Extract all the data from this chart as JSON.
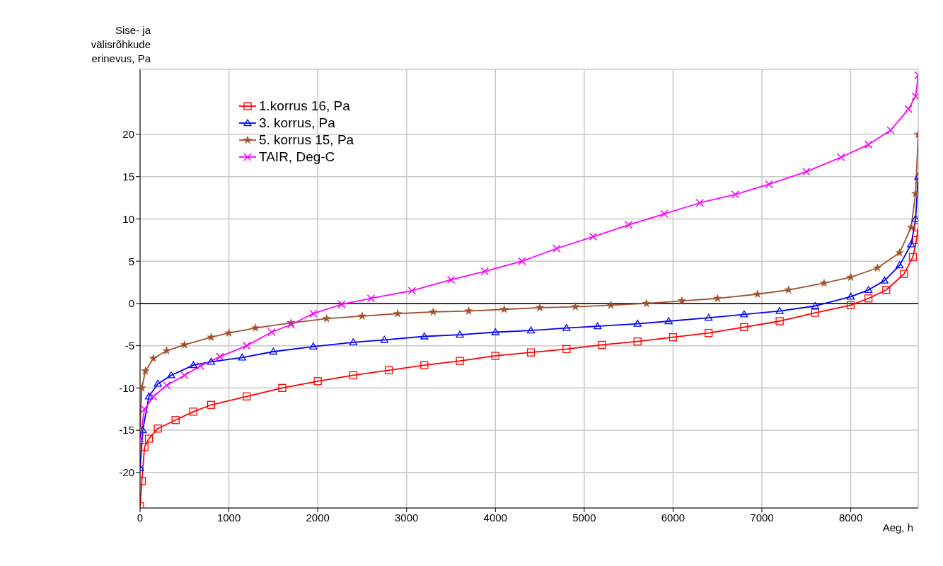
{
  "chart_data": {
    "type": "line",
    "xlabel": "Aeg, h",
    "ylabel": "Sise- ja välisrõhkude erinevus, Pa",
    "xlim": [
      0,
      8760
    ],
    "xticks": [
      0,
      1000,
      2000,
      3000,
      4000,
      5000,
      6000,
      7000,
      8000
    ],
    "ylim": [
      -24.2,
      27.7
    ],
    "yticks": [
      -20,
      -15,
      -10,
      -5,
      0,
      5,
      10,
      15,
      20
    ],
    "grid": true,
    "legend": "top left",
    "line_style": "solid",
    "ref_lines": [
      {
        "axis": "y",
        "value": 0,
        "color": "#000000"
      }
    ],
    "series": [
      {
        "name": "1.korrus 16, Pa",
        "color": "#ff0000",
        "marker": "square",
        "x": [
          0,
          20,
          50,
          100,
          200,
          400,
          600,
          800,
          1200,
          1600,
          2000,
          2400,
          2800,
          3200,
          3600,
          4000,
          4400,
          4800,
          5200,
          5600,
          6000,
          6400,
          6800,
          7200,
          7600,
          8000,
          8200,
          8400,
          8600,
          8700,
          8740,
          8760
        ],
        "values": [
          -24,
          -21,
          -17,
          -16,
          -14.8,
          -13.8,
          -12.8,
          -12,
          -11,
          -10,
          -9.2,
          -8.5,
          -7.9,
          -7.3,
          -6.8,
          -6.2,
          -5.8,
          -5.4,
          -4.9,
          -4.5,
          -4,
          -3.5,
          -2.8,
          -2.1,
          -1.1,
          -0.2,
          0.6,
          1.6,
          3.5,
          5.5,
          7.5,
          9
        ]
      },
      {
        "name": "3. korrus, Pa",
        "color": "#0000ff",
        "marker": "triangle",
        "x": [
          0,
          30,
          100,
          200,
          350,
          600,
          800,
          1150,
          1500,
          1950,
          2400,
          2750,
          3200,
          3600,
          4000,
          4400,
          4800,
          5150,
          5600,
          5950,
          6400,
          6800,
          7200,
          7600,
          8000,
          8200,
          8380,
          8550,
          8680,
          8730,
          8760
        ],
        "values": [
          -19.5,
          -15,
          -11,
          -9.5,
          -8.5,
          -7.3,
          -6.9,
          -6.4,
          -5.7,
          -5.1,
          -4.6,
          -4.3,
          -3.9,
          -3.7,
          -3.4,
          -3.2,
          -2.9,
          -2.7,
          -2.4,
          -2.1,
          -1.7,
          -1.3,
          -0.9,
          -0.3,
          0.8,
          1.6,
          2.7,
          4.5,
          7,
          10,
          15
        ]
      },
      {
        "name": "5. korrus 15, Pa",
        "color": "#a0522d",
        "marker": "star",
        "x": [
          0,
          20,
          60,
          150,
          300,
          500,
          800,
          1000,
          1300,
          1700,
          2100,
          2500,
          2900,
          3300,
          3700,
          4100,
          4500,
          4900,
          5300,
          5700,
          6100,
          6500,
          6950,
          7300,
          7700,
          8000,
          8300,
          8550,
          8680,
          8730,
          8760
        ],
        "values": [
          -15,
          -10,
          -8,
          -6.5,
          -5.6,
          -4.9,
          -4,
          -3.5,
          -2.9,
          -2.3,
          -1.8,
          -1.5,
          -1.2,
          -1,
          -0.9,
          -0.7,
          -0.5,
          -0.4,
          -0.2,
          0,
          0.3,
          0.6,
          1.1,
          1.6,
          2.4,
          3.1,
          4.2,
          6,
          9,
          13,
          20
        ]
      },
      {
        "name": "TAIR, Deg-C",
        "color": "#ff00ff",
        "marker": "cross",
        "x": [
          0,
          50,
          150,
          300,
          500,
          680,
          900,
          1200,
          1480,
          1700,
          1950,
          2270,
          2600,
          3060,
          3500,
          3880,
          4300,
          4690,
          5100,
          5500,
          5900,
          6300,
          6700,
          7080,
          7500,
          7890,
          8200,
          8450,
          8650,
          8730,
          8760
        ],
        "values": [
          -16,
          -12.5,
          -11,
          -9.7,
          -8.5,
          -7.4,
          -6.3,
          -5,
          -3.4,
          -2.5,
          -1.2,
          -0.1,
          0.6,
          1.5,
          2.8,
          3.8,
          5,
          6.5,
          7.9,
          9.3,
          10.6,
          11.9,
          12.9,
          14.1,
          15.6,
          17.3,
          18.8,
          20.5,
          23,
          24.5,
          27
        ]
      }
    ]
  }
}
